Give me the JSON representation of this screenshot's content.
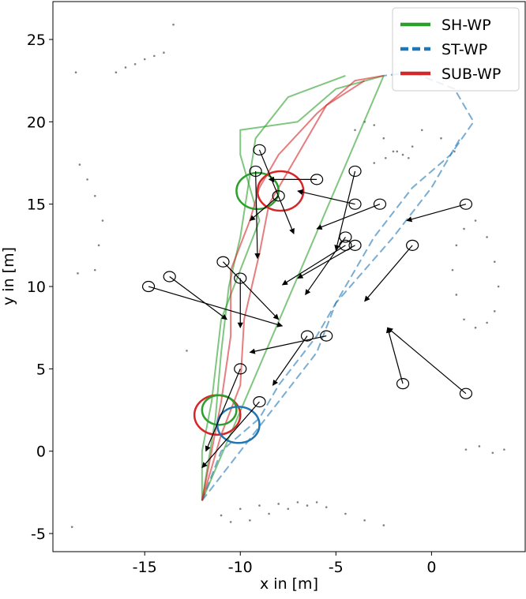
{
  "chart_data": {
    "type": "trajectory",
    "xlabel": "x in [m]",
    "ylabel": "y in [m]",
    "xlim": [
      -19.8,
      4.9
    ],
    "ylim": [
      -6.1,
      27.3
    ],
    "xticks": [
      -15,
      -10,
      -5,
      0
    ],
    "yticks": [
      -5,
      0,
      5,
      10,
      15,
      20,
      25
    ],
    "legend": "upper right",
    "series": [
      {
        "name": "SH-WP",
        "color": "#2ca02c",
        "linestyle": "solid",
        "x": [
          -12,
          -11.3,
          -11,
          -10.6,
          -10,
          -9.6,
          -9.2,
          -7.5,
          -4.5,
          null,
          -12,
          -2.5,
          null,
          -12,
          -12,
          -11.5,
          -11,
          -10,
          -9,
          -10,
          -10,
          -7,
          -5,
          -2.5
        ],
        "y": [
          -3,
          2,
          6,
          10,
          13,
          16,
          19,
          21.5,
          22.8,
          null,
          -3,
          22.8,
          null,
          -3,
          0,
          3,
          8,
          11,
          14,
          18,
          19.5,
          20,
          22,
          22.8
        ]
      },
      {
        "name": "ST-WP",
        "color": "#1f77b4",
        "linestyle": "dashed",
        "x": [
          -12,
          -11,
          -9,
          -8,
          -6,
          -5,
          -4,
          -3,
          -1,
          1,
          2.2,
          1.2,
          -1,
          -2.5,
          null,
          -12,
          -10,
          -8,
          -6,
          -5,
          -3.5,
          -2,
          0,
          1.5
        ],
        "y": [
          -3,
          0,
          2,
          4,
          7,
          9,
          11,
          13,
          16,
          18,
          20,
          22,
          23,
          22.8,
          null,
          -3,
          0,
          3,
          6,
          9,
          11,
          13,
          16,
          19
        ]
      },
      {
        "name": "SUB-WP",
        "color": "#d62728",
        "linestyle": "solid",
        "x": [
          -12,
          -11.5,
          -11,
          -10.5,
          -10.5,
          -9.5,
          -9,
          -8,
          -6,
          -4,
          -2.5,
          null,
          -12,
          -11,
          -10,
          -9.8,
          -9,
          -8.5,
          -7.5,
          -6.5,
          -5.5,
          -3.5
        ],
        "y": [
          -3,
          0,
          3,
          7,
          11,
          14,
          16,
          18,
          20.5,
          22.5,
          22.8,
          null,
          -3,
          1,
          4,
          8,
          12,
          15,
          17,
          19,
          21,
          22.5
        ]
      }
    ],
    "robots": [
      {
        "x": -11.2,
        "y": 2.2,
        "radius": 1.2,
        "color": "#d62728"
      },
      {
        "x": -11.1,
        "y": 2.5,
        "radius": 0.9,
        "color": "#2ca02c"
      },
      {
        "x": -10.1,
        "y": 1.6,
        "radius": 1.1,
        "color": "#1f77b4"
      },
      {
        "x": -9.1,
        "y": 15.8,
        "radius": 1.1,
        "color": "#2ca02c"
      },
      {
        "x": -7.9,
        "y": 15.8,
        "radius": 1.2,
        "color": "#d62728"
      }
    ],
    "pedestrians": {
      "x": [
        -14.8,
        -13.7,
        1.8,
        1.8,
        -1.5,
        -1,
        -4,
        -4,
        -2.7,
        -4,
        -4.5,
        -6,
        -9,
        -9.2,
        -8,
        -10.9,
        -10,
        -5.5,
        -6.5,
        -10,
        -9,
        -4.5
      ],
      "y": [
        10,
        10.6,
        15,
        3.5,
        4.1,
        12.5,
        17,
        15,
        15,
        12.5,
        12.5,
        16.5,
        18.3,
        17,
        15.5,
        11.5,
        10.5,
        7,
        7,
        5,
        3,
        13
      ],
      "goal_x": [
        -7.8,
        -10.7,
        -1.3,
        -2.3,
        -2.3,
        -3.5,
        -5,
        -7,
        -6,
        -7,
        -7.8,
        -8.5,
        -7.2,
        -9.1,
        -9.5,
        -8,
        -10,
        -9.5,
        -8.3,
        -11.8,
        -12,
        -6.6
      ],
      "goal_y": [
        7.6,
        8,
        14,
        7.5,
        7.5,
        9.1,
        12.2,
        15.8,
        13.5,
        10.5,
        10.1,
        16.5,
        13.2,
        11.7,
        14,
        8,
        7.5,
        6,
        4,
        0,
        -1,
        9.5
      ]
    },
    "obstacles": {
      "color": "#808080",
      "x": [
        -18.6,
        -16.5,
        -16,
        -15.5,
        -15,
        -14.5,
        -14,
        -13.5,
        -18.4,
        -18,
        -17.6,
        -17.2,
        -17.4,
        -17.6,
        -18.5,
        2.3,
        2.9,
        3.3,
        3.5,
        3.3,
        2.9,
        2.3,
        1.7,
        1.3,
        1.1,
        1.3,
        1.7,
        -4,
        -3.5,
        -3,
        -2.5,
        -2,
        -1.5,
        -1,
        -0.5,
        0.5,
        1.2,
        -3,
        -2.4,
        -1.8,
        -1.2,
        -6,
        -7,
        -8,
        -9,
        -10,
        -11,
        -10.5,
        -9.5,
        -8.5,
        -7.5,
        -6.5,
        -5.5,
        -4.5,
        -3.5,
        -2.5,
        1.8,
        2.5,
        3.2,
        3.8,
        -18.8,
        -12.8
      ],
      "y": [
        23,
        23,
        23.3,
        23.5,
        23.8,
        24,
        24.2,
        25.9,
        17.4,
        16.5,
        15.5,
        14,
        12.5,
        11,
        10.8,
        14,
        13,
        11.5,
        10,
        8.5,
        7.8,
        7.5,
        8,
        9.5,
        11,
        12.5,
        13.5,
        19.5,
        20,
        19.8,
        19,
        18.2,
        18,
        18.5,
        19.5,
        19,
        18.2,
        17.5,
        17.8,
        18.2,
        17.8,
        -3.1,
        -3.1,
        -3.2,
        -3.3,
        -3.5,
        -3.9,
        -4.3,
        -4.2,
        -3.8,
        -3.5,
        -3.3,
        -3.4,
        -3.8,
        -4.2,
        -4.5,
        0.1,
        0.3,
        -0.1,
        0.1,
        -4.6,
        6.1
      ]
    }
  }
}
